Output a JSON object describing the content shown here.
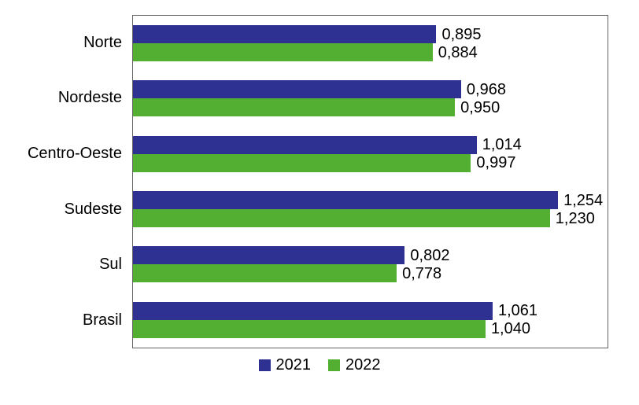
{
  "chart_data": {
    "type": "bar",
    "orientation": "horizontal",
    "title": "",
    "xlabel": "",
    "ylabel": "",
    "grid": false,
    "legend_position": "bottom",
    "xlim": [
      0,
      1.4
    ],
    "categories": [
      "Norte",
      "Nordeste",
      "Centro-Oeste",
      "Sudeste",
      "Sul",
      "Brasil"
    ],
    "series": [
      {
        "name": "2021",
        "color": "#2E3192",
        "values": [
          0.895,
          0.968,
          1.014,
          1.254,
          0.802,
          1.061
        ],
        "labels": [
          "0,895",
          "0,968",
          "1,014",
          "1,254",
          "0,802",
          "1,061"
        ]
      },
      {
        "name": "2022",
        "color": "#53AF32",
        "values": [
          0.884,
          0.95,
          0.997,
          1.23,
          0.778,
          1.04
        ],
        "labels": [
          "0,884",
          "0,950",
          "0,997",
          "1,230",
          "0,778",
          "1,040"
        ]
      }
    ],
    "colors": {
      "plot_border": "#636363",
      "background": "#ffffff",
      "text": "#000000"
    }
  }
}
